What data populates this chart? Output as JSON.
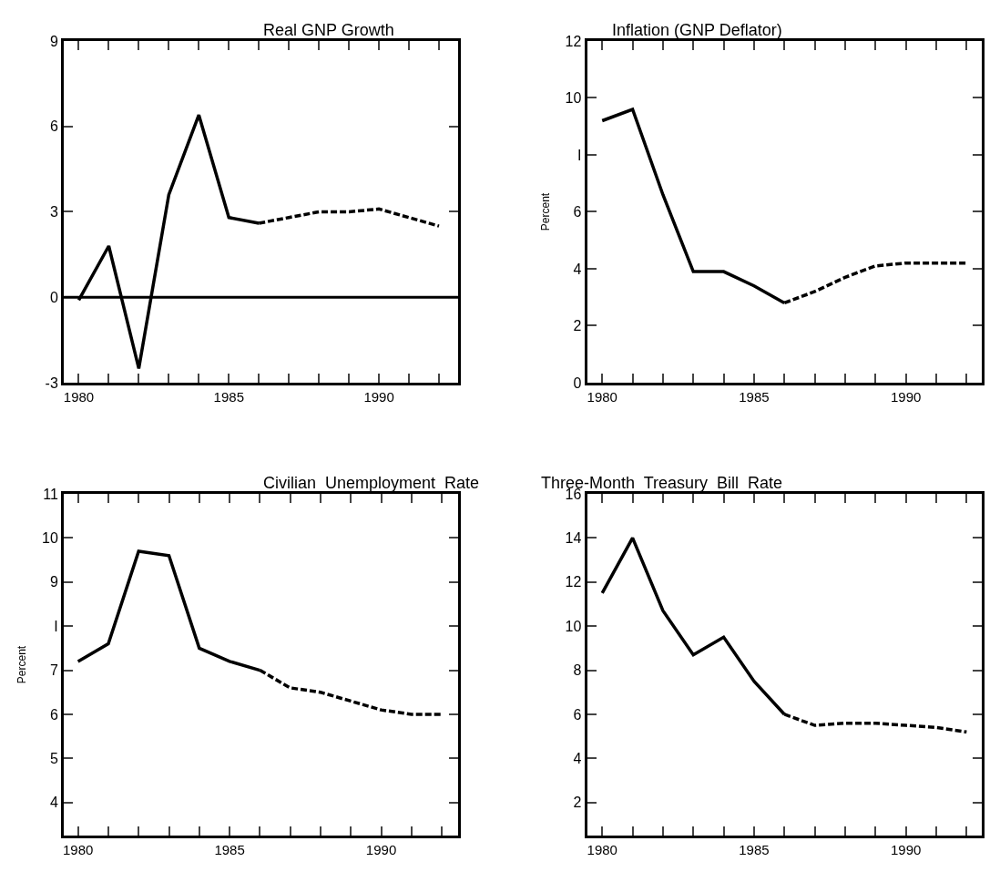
{
  "chart_data": [
    {
      "type": "line",
      "title": "Real GNP Growth",
      "xlim": [
        1979.5,
        1992.65
      ],
      "xticks": [
        1980,
        {
          "value": 1981,
          "label": null
        },
        {
          "value": 1982,
          "label": null
        },
        {
          "value": 1983,
          "label": null
        },
        {
          "value": 1984,
          "label": null
        },
        1985,
        {
          "value": 1986,
          "label": null
        },
        {
          "value": 1987,
          "label": null
        },
        {
          "value": 1988,
          "label": null
        },
        {
          "value": 1989,
          "label": null
        },
        1990,
        {
          "value": 1991,
          "label": null
        },
        {
          "value": 1992,
          "label": null
        }
      ],
      "ylim": [
        -3,
        9
      ],
      "yticks": [
        -3,
        0,
        3,
        6,
        9
      ],
      "series": [
        {
          "x": [
            1980,
            1981,
            1982,
            1983,
            1984,
            1985,
            1986
          ],
          "values": [
            -0.1,
            1.8,
            -2.5,
            3.6,
            6.4,
            2.8,
            2.6
          ],
          "color": "#000000",
          "line_style": "solid"
        },
        {
          "x": [
            1986,
            1987,
            1988,
            1989,
            1990,
            1991,
            1992
          ],
          "values": [
            2.6,
            2.8,
            3.0,
            3.0,
            3.1,
            2.8,
            2.5
          ],
          "color": "#000000",
          "line_style": "dashed"
        }
      ],
      "ref_lines": [
        {
          "axis": "y",
          "value": 0,
          "color": "#000000"
        }
      ]
    },
    {
      "type": "line",
      "title": "Inflation (GNP Deflator)",
      "ylabel": "Percent",
      "xlim": [
        1979.5,
        1992.5
      ],
      "xticks": [
        1980,
        {
          "value": 1981,
          "label": null
        },
        {
          "value": 1982,
          "label": null
        },
        {
          "value": 1983,
          "label": null
        },
        {
          "value": 1984,
          "label": null
        },
        1985,
        {
          "value": 1986,
          "label": null
        },
        {
          "value": 1987,
          "label": null
        },
        {
          "value": 1988,
          "label": null
        },
        {
          "value": 1989,
          "label": null
        },
        1990,
        {
          "value": 1991,
          "label": null
        },
        {
          "value": 1992,
          "label": null
        }
      ],
      "ylim": [
        0,
        12
      ],
      "yticks": [
        0,
        2,
        4,
        6,
        {
          "value": 8,
          "label": "I"
        },
        10,
        12
      ],
      "series": [
        {
          "x": [
            1980,
            1981,
            1982,
            1983,
            1984,
            1985,
            1986
          ],
          "values": [
            9.2,
            9.6,
            6.6,
            3.9,
            3.9,
            3.4,
            2.8
          ],
          "color": "#000000",
          "line_style": "solid"
        },
        {
          "x": [
            1986,
            1987,
            1988,
            1989,
            1990,
            1991,
            1992
          ],
          "values": [
            2.8,
            3.2,
            3.7,
            4.1,
            4.2,
            4.2,
            4.2
          ],
          "color": "#000000",
          "line_style": "dashed"
        }
      ]
    },
    {
      "type": "line",
      "title": "Civilian  Unemployment  Rate",
      "ylabel": "Percent",
      "xlim": [
        1979.53,
        1992.55
      ],
      "xticks": [
        1980,
        {
          "value": 1981,
          "label": null
        },
        {
          "value": 1982,
          "label": null
        },
        {
          "value": 1983,
          "label": null
        },
        {
          "value": 1984,
          "label": null
        },
        1985,
        {
          "value": 1986,
          "label": null
        },
        {
          "value": 1987,
          "label": null
        },
        {
          "value": 1988,
          "label": null
        },
        {
          "value": 1989,
          "label": null
        },
        1990,
        {
          "value": 1991,
          "label": null
        },
        {
          "value": 1992,
          "label": null
        }
      ],
      "ylim": [
        3.25,
        11
      ],
      "yticks": [
        4,
        5,
        6,
        7,
        {
          "value": 8,
          "label": "I"
        },
        9,
        10,
        11
      ],
      "series": [
        {
          "x": [
            1980,
            1981,
            1982,
            1983,
            1984,
            1985,
            1986
          ],
          "values": [
            7.2,
            7.6,
            9.7,
            9.6,
            7.5,
            7.2,
            7.0
          ],
          "color": "#000000",
          "line_style": "solid"
        },
        {
          "x": [
            1986,
            1987,
            1988,
            1989,
            1990,
            1991,
            1992
          ],
          "values": [
            7.0,
            6.6,
            6.5,
            6.3,
            6.1,
            6.0,
            6.0
          ],
          "color": "#000000",
          "line_style": "dashed"
        }
      ]
    },
    {
      "type": "line",
      "title": "Three-Month  Treasury  Bill  Rate",
      "xlim": [
        1979.5,
        1992.5
      ],
      "xticks": [
        1980,
        {
          "value": 1981,
          "label": null
        },
        {
          "value": 1982,
          "label": null
        },
        {
          "value": 1983,
          "label": null
        },
        {
          "value": 1984,
          "label": null
        },
        1985,
        {
          "value": 1986,
          "label": null
        },
        {
          "value": 1987,
          "label": null
        },
        {
          "value": 1988,
          "label": null
        },
        {
          "value": 1989,
          "label": null
        },
        1990,
        {
          "value": 1991,
          "label": null
        },
        {
          "value": 1992,
          "label": null
        }
      ],
      "ylim": [
        0.5,
        16
      ],
      "yticks": [
        2,
        4,
        6,
        8,
        10,
        12,
        14,
        16
      ],
      "series": [
        {
          "x": [
            1980,
            1981,
            1982,
            1983,
            1984,
            1985,
            1986
          ],
          "values": [
            11.5,
            14.0,
            10.7,
            8.7,
            9.5,
            7.5,
            6.0
          ],
          "color": "#000000",
          "line_style": "solid"
        },
        {
          "x": [
            1986,
            1987,
            1988,
            1989,
            1990,
            1991,
            1992
          ],
          "values": [
            6.0,
            5.5,
            5.6,
            5.6,
            5.5,
            5.4,
            5.2
          ],
          "color": "#000000",
          "line_style": "dashed"
        }
      ]
    }
  ]
}
